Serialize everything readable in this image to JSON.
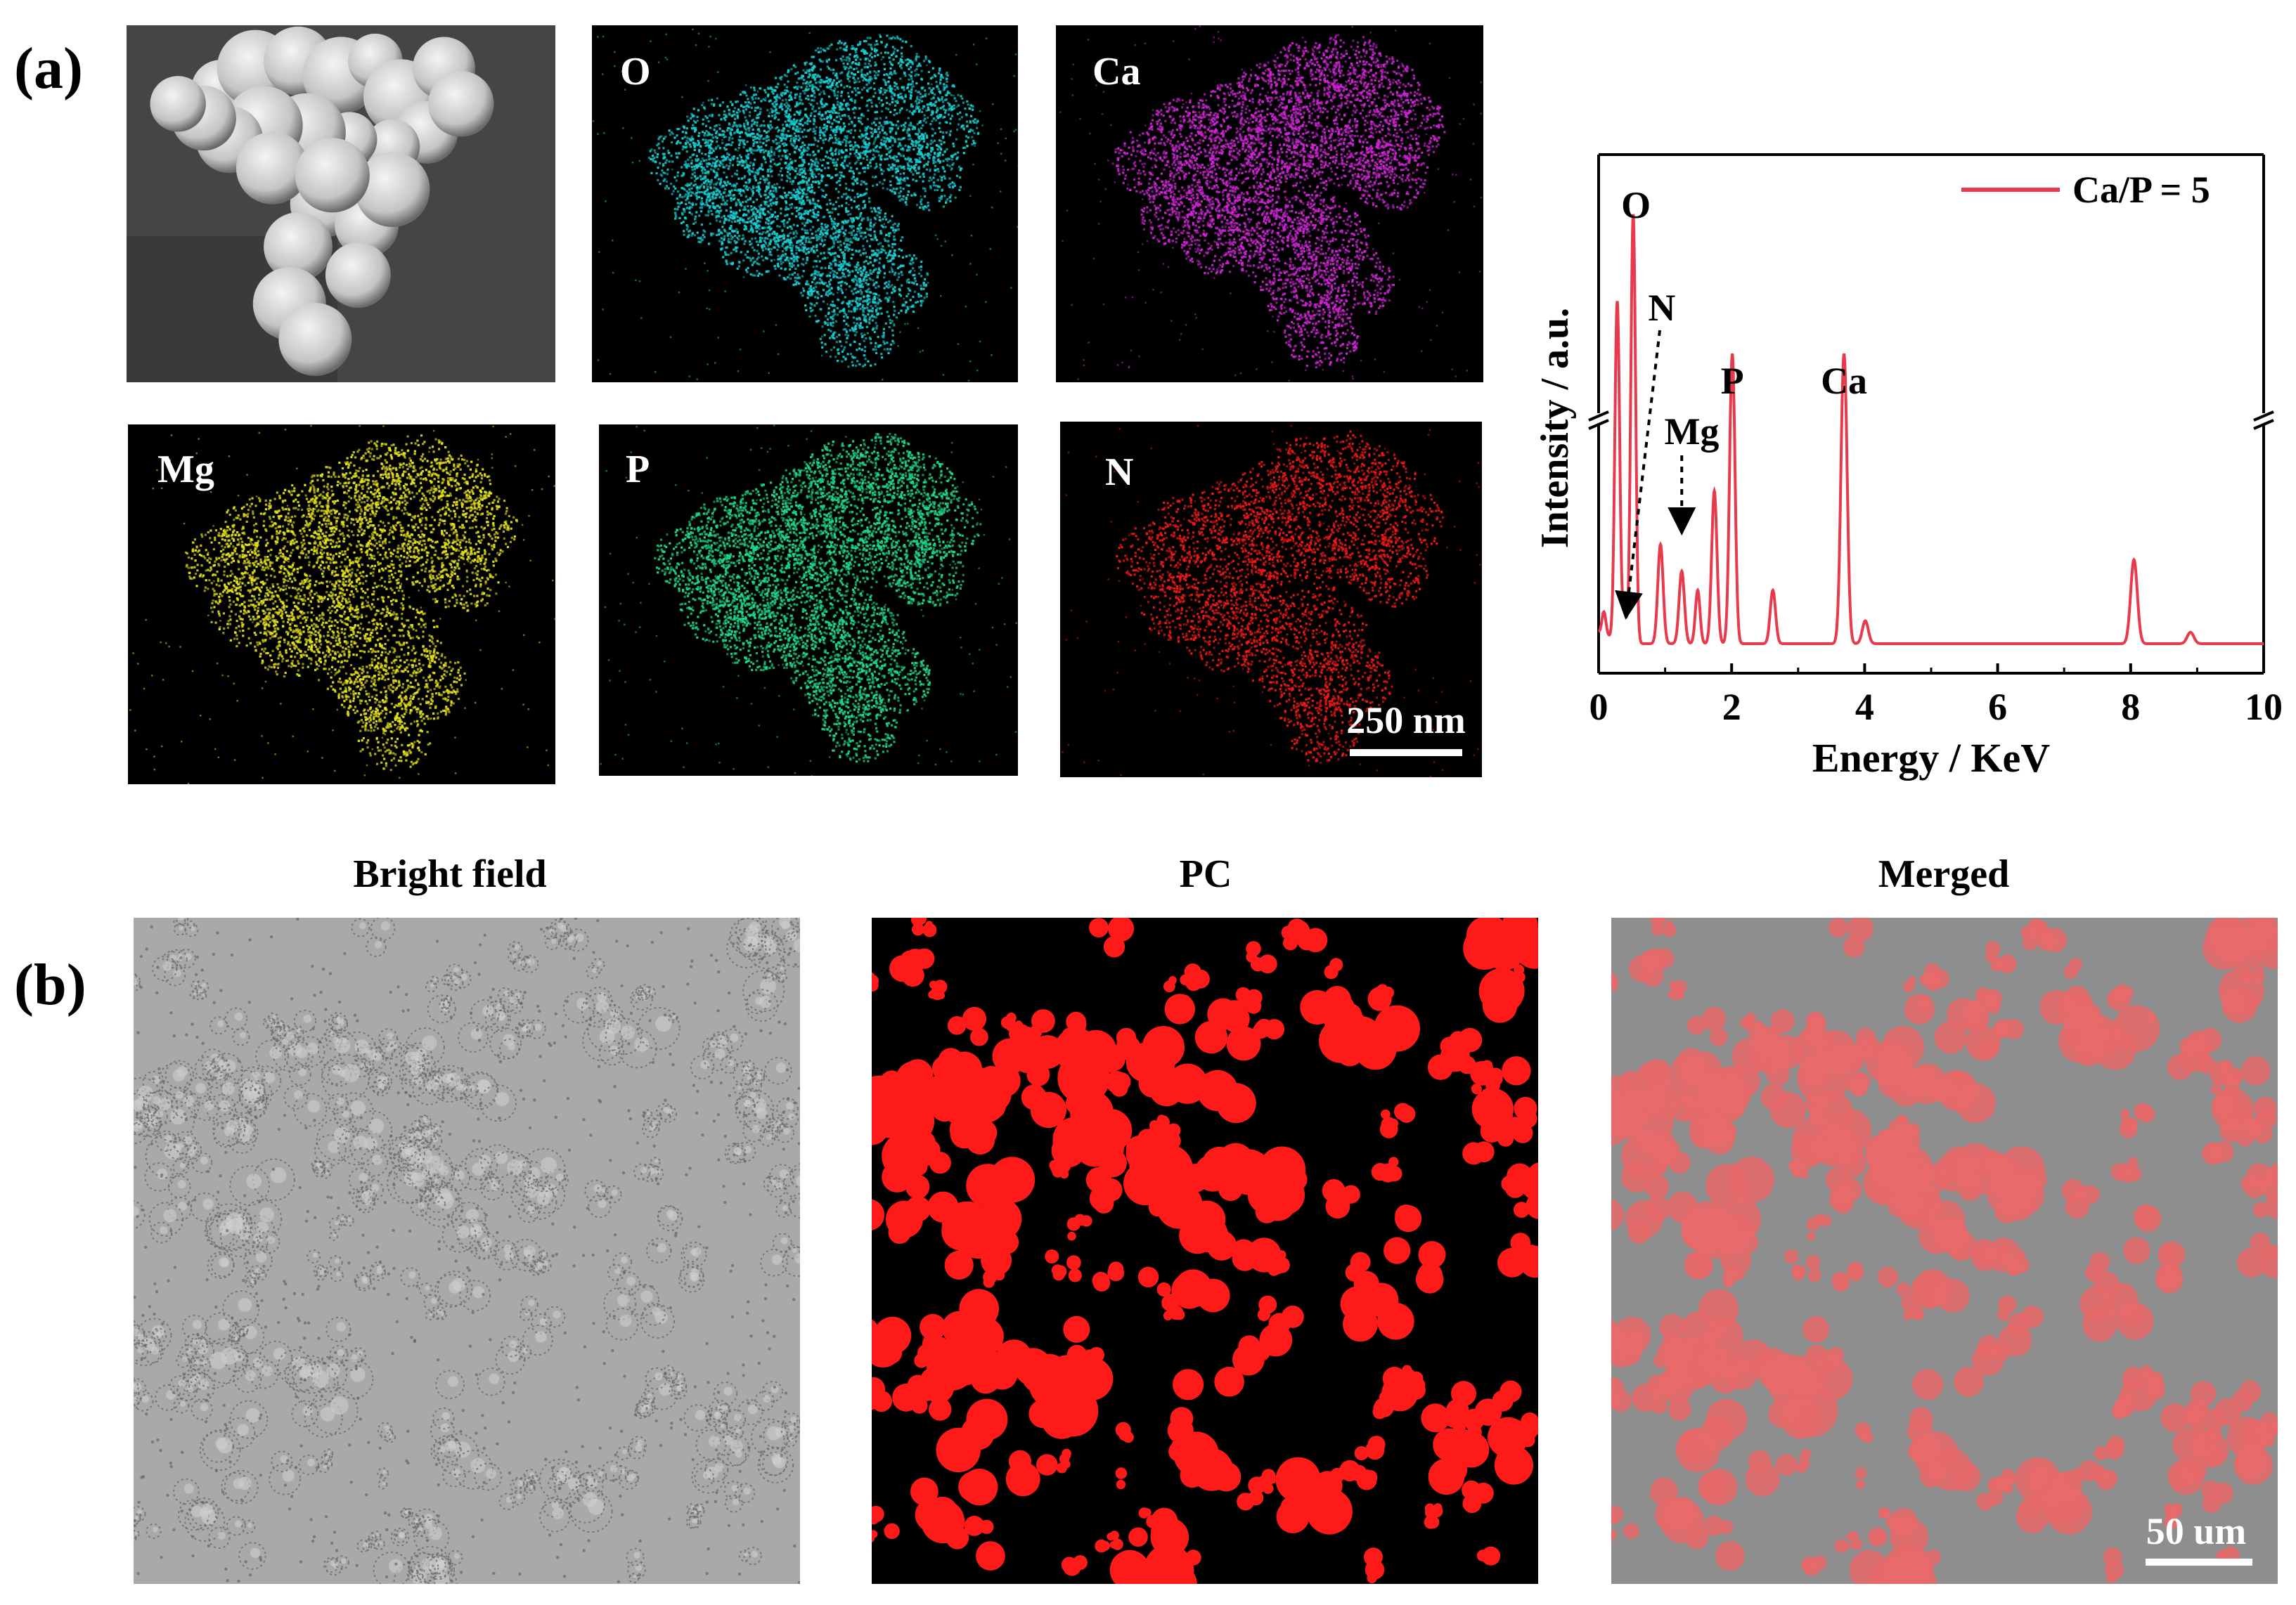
{
  "panels": {
    "a_label": "(a)",
    "b_label": "(b)"
  },
  "eds_maps": {
    "tiles": [
      {
        "key": "sem",
        "label": "",
        "color": "#d8d8d8"
      },
      {
        "key": "O",
        "label": "O",
        "color": "#16d0d4"
      },
      {
        "key": "Ca",
        "label": "Ca",
        "color": "#d024d6"
      },
      {
        "key": "Mg",
        "label": "Mg",
        "color": "#e6e21a"
      },
      {
        "key": "P",
        "label": "P",
        "color": "#1ed98a"
      },
      {
        "key": "N",
        "label": "N",
        "color": "#f01818"
      }
    ],
    "scale_bar": "250 nm"
  },
  "fluorescence": {
    "titles": [
      "Bright field",
      "PC",
      "Merged"
    ],
    "scale_bar": "50 um",
    "pc_color": "#ff1a1a",
    "bright_bg": "#a9a9a9"
  },
  "chart_data": {
    "type": "line",
    "xlabel": "Energy / KeV",
    "ylabel": "Intensity / a.u.",
    "xlim": [
      0,
      10
    ],
    "x_ticks": [
      "0",
      "2",
      "4",
      "6",
      "8",
      "10"
    ],
    "y_axis_break": true,
    "y_ticks": "none",
    "legend": {
      "label": "Ca/P = 5",
      "placement": "top-right"
    },
    "series": [
      {
        "name": "Ca/P = 5",
        "color": "#e83a4c",
        "baseline": 2.2,
        "peaks": [
          {
            "x": 0.08,
            "h": 6,
            "w": 0.03
          },
          {
            "x": 0.28,
            "h": 92,
            "w": 0.035
          },
          {
            "x": 0.39,
            "h": 7,
            "w": 0.03
          },
          {
            "x": 0.52,
            "h": 118,
            "w": 0.035
          },
          {
            "x": 0.93,
            "h": 26,
            "w": 0.04
          },
          {
            "x": 1.25,
            "h": 19,
            "w": 0.04
          },
          {
            "x": 1.49,
            "h": 14,
            "w": 0.035
          },
          {
            "x": 1.74,
            "h": 40,
            "w": 0.04
          },
          {
            "x": 2.01,
            "h": 78,
            "w": 0.04
          },
          {
            "x": 2.62,
            "h": 14,
            "w": 0.04
          },
          {
            "x": 3.69,
            "h": 78,
            "w": 0.045
          },
          {
            "x": 4.01,
            "h": 6,
            "w": 0.045
          },
          {
            "x": 8.05,
            "h": 22,
            "w": 0.05
          },
          {
            "x": 8.9,
            "h": 3,
            "w": 0.05
          }
        ]
      }
    ],
    "annotations": [
      {
        "text": "O",
        "x": 0.52
      },
      {
        "text": "N",
        "x": 0.39
      },
      {
        "text": "Mg",
        "x": 1.25
      },
      {
        "text": "P",
        "x": 2.01
      },
      {
        "text": "Ca",
        "x": 3.69
      }
    ]
  }
}
